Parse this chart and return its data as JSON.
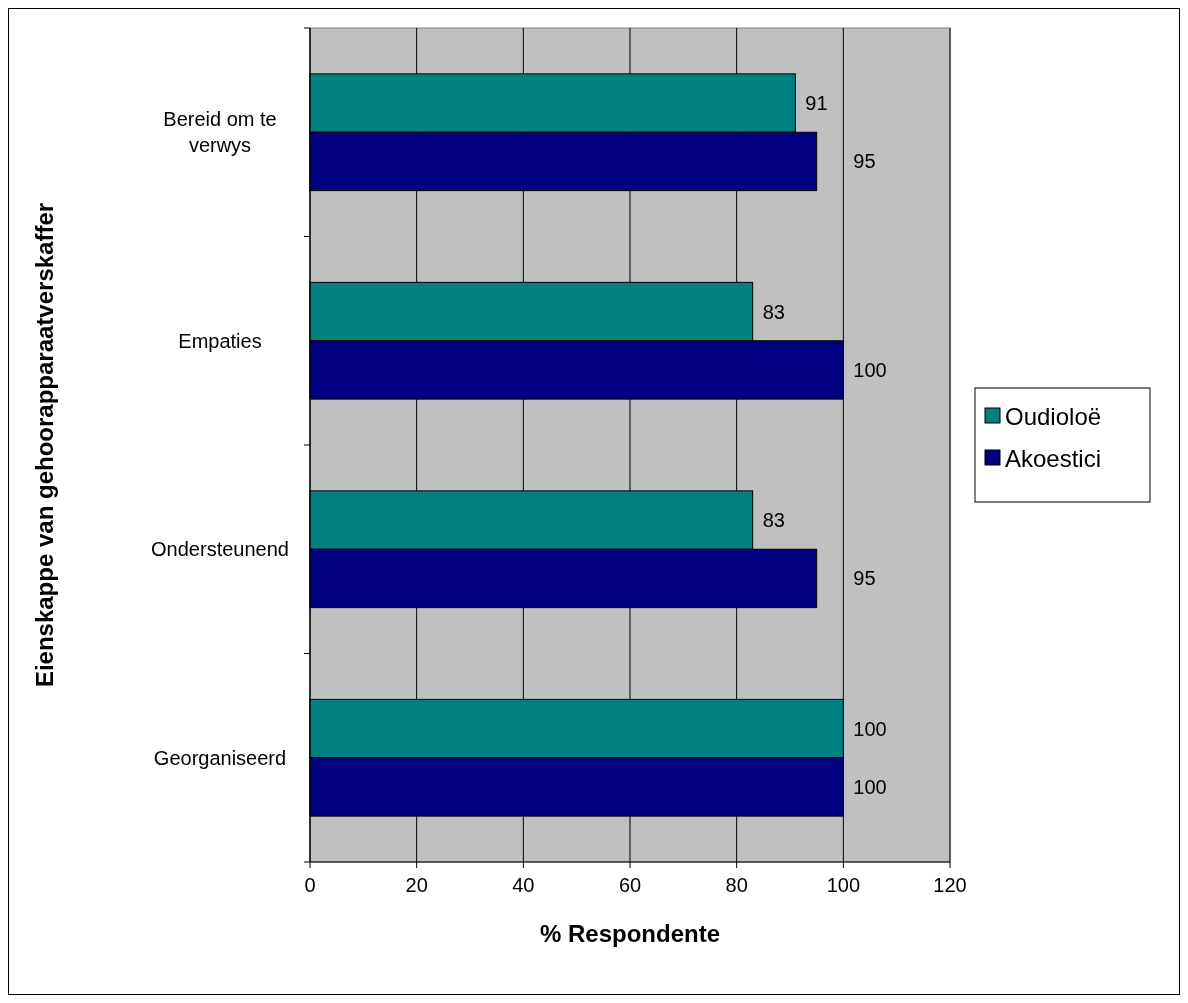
{
  "chart_data": {
    "type": "bar",
    "orientation": "horizontal",
    "xlabel": "% Respondente",
    "ylabel": "Eienskappe van gehoorapparaatverskaffer",
    "categories": [
      "Bereid om te verwys",
      "Empaties",
      "Ondersteunend",
      "Georganiseerd"
    ],
    "series": [
      {
        "name": "Oudioloë",
        "color": "#008080",
        "values": [
          91,
          83,
          83,
          100
        ]
      },
      {
        "name": "Akoestici",
        "color": "#000080",
        "values": [
          95,
          100,
          95,
          100
        ]
      }
    ],
    "xlim": [
      0,
      120
    ],
    "xticks": [
      0,
      20,
      40,
      60,
      80,
      100,
      120
    ],
    "grid": "x",
    "legend": "right",
    "data_labels": true
  }
}
